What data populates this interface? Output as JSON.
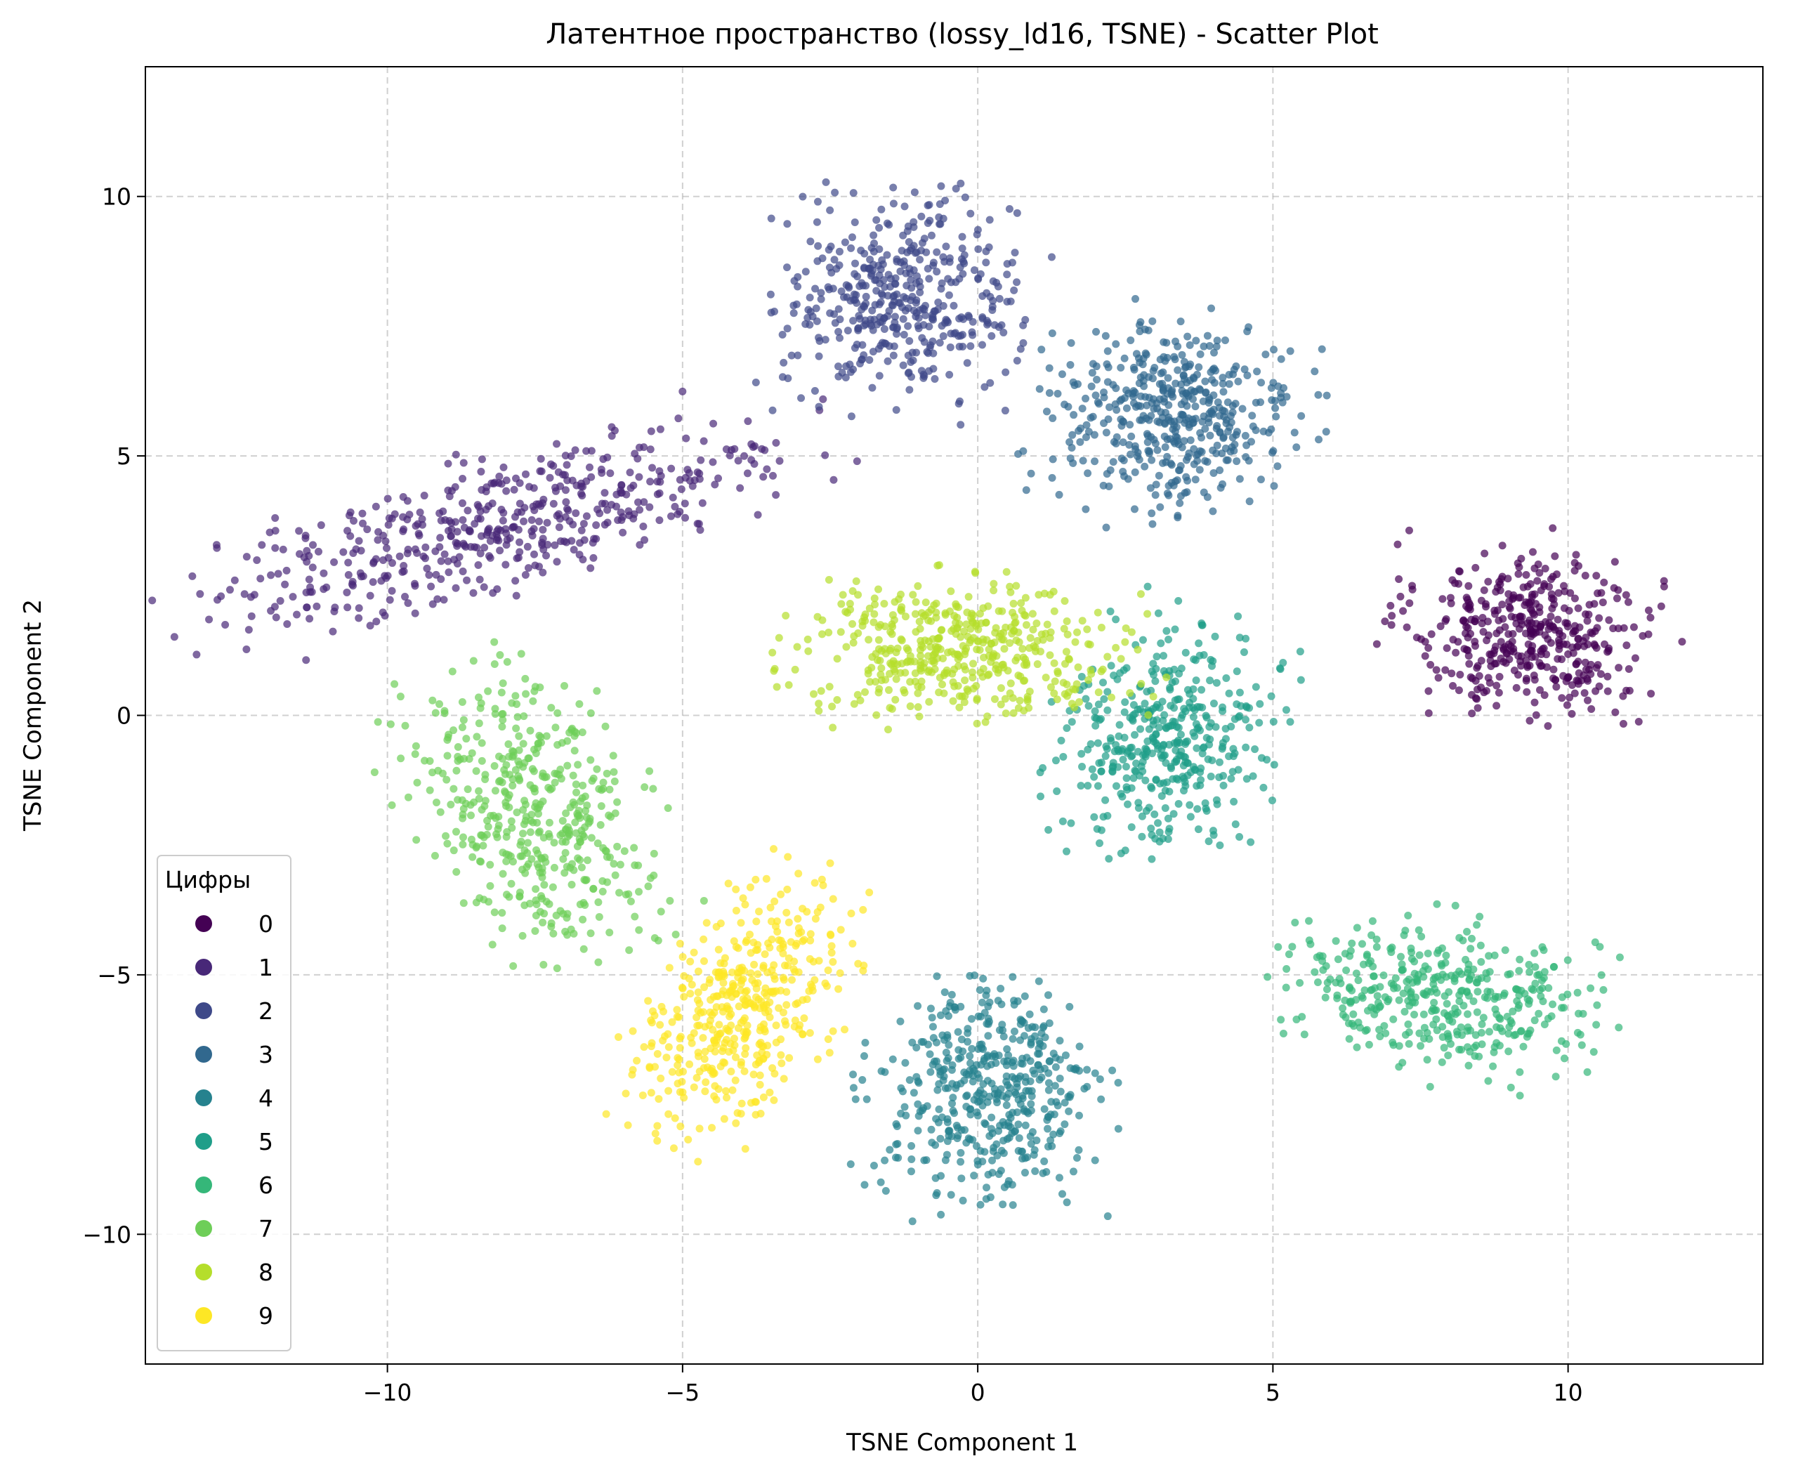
{
  "chart_data": {
    "type": "scatter",
    "title": "Латентное пространство (lossy_ld16, TSNE) - Scatter Plot",
    "xlabel": "TSNE Component 1",
    "ylabel": "TSNE Component 2",
    "xlim": [
      -14.1,
      13.3
    ],
    "ylim": [
      -12.5,
      12.5
    ],
    "xticks": [
      -10,
      -5,
      0,
      5,
      10
    ],
    "yticks": [
      -10,
      -5,
      0,
      5,
      10
    ],
    "xtick_labels": [
      "−10",
      "−5",
      "0",
      "5",
      "10"
    ],
    "ytick_labels": [
      "−10",
      "−5",
      "0",
      "5",
      "10"
    ],
    "grid": true,
    "legend_placement": "lower-left",
    "legend_title": "Цифры",
    "series": [
      {
        "name": "0",
        "color": "#440154",
        "clusters": [
          {
            "center": [
              9.4,
              1.6
            ],
            "spread": [
              1.6,
              1.3
            ],
            "angle": -10,
            "count": 420
          }
        ]
      },
      {
        "name": "1",
        "color": "#482878",
        "clusters": [
          {
            "center": [
              -8.0,
              3.7
            ],
            "spread": [
              4.2,
              0.95
            ],
            "angle": 18,
            "count": 500
          }
        ]
      },
      {
        "name": "2",
        "color": "#3e4989",
        "clusters": [
          {
            "center": [
              -1.3,
              8.0
            ],
            "spread": [
              1.6,
              1.5
            ],
            "angle": 0,
            "count": 440
          }
        ]
      },
      {
        "name": "3",
        "color": "#31688e",
        "clusters": [
          {
            "center": [
              3.3,
              5.8
            ],
            "spread": [
              1.7,
              1.4
            ],
            "angle": 0,
            "count": 460
          }
        ]
      },
      {
        "name": "4",
        "color": "#26828e",
        "clusters": [
          {
            "center": [
              0.2,
              -7.3
            ],
            "spread": [
              1.5,
              1.7
            ],
            "angle": 0,
            "count": 460
          }
        ]
      },
      {
        "name": "5",
        "color": "#1f9e89",
        "clusters": [
          {
            "center": [
              3.2,
              -0.4
            ],
            "spread": [
              1.3,
              1.7
            ],
            "angle": -15,
            "count": 420
          }
        ]
      },
      {
        "name": "6",
        "color": "#35b779",
        "clusters": [
          {
            "center": [
              7.8,
              -5.4
            ],
            "spread": [
              2.0,
              1.1
            ],
            "angle": -12,
            "count": 400
          }
        ]
      },
      {
        "name": "7",
        "color": "#6ece58",
        "clusters": [
          {
            "center": [
              -7.5,
              -1.8
            ],
            "spread": [
              1.4,
              2.1
            ],
            "angle": 25,
            "count": 460
          }
        ]
      },
      {
        "name": "8",
        "color": "#b5de2b",
        "clusters": [
          {
            "center": [
              -0.3,
              1.3
            ],
            "spread": [
              2.2,
              1.0
            ],
            "angle": 0,
            "count": 460
          }
        ]
      },
      {
        "name": "9",
        "color": "#fde725",
        "clusters": [
          {
            "center": [
              -4.0,
              -5.6
            ],
            "spread": [
              1.1,
              2.0
            ],
            "angle": -30,
            "count": 440
          }
        ]
      }
    ]
  }
}
